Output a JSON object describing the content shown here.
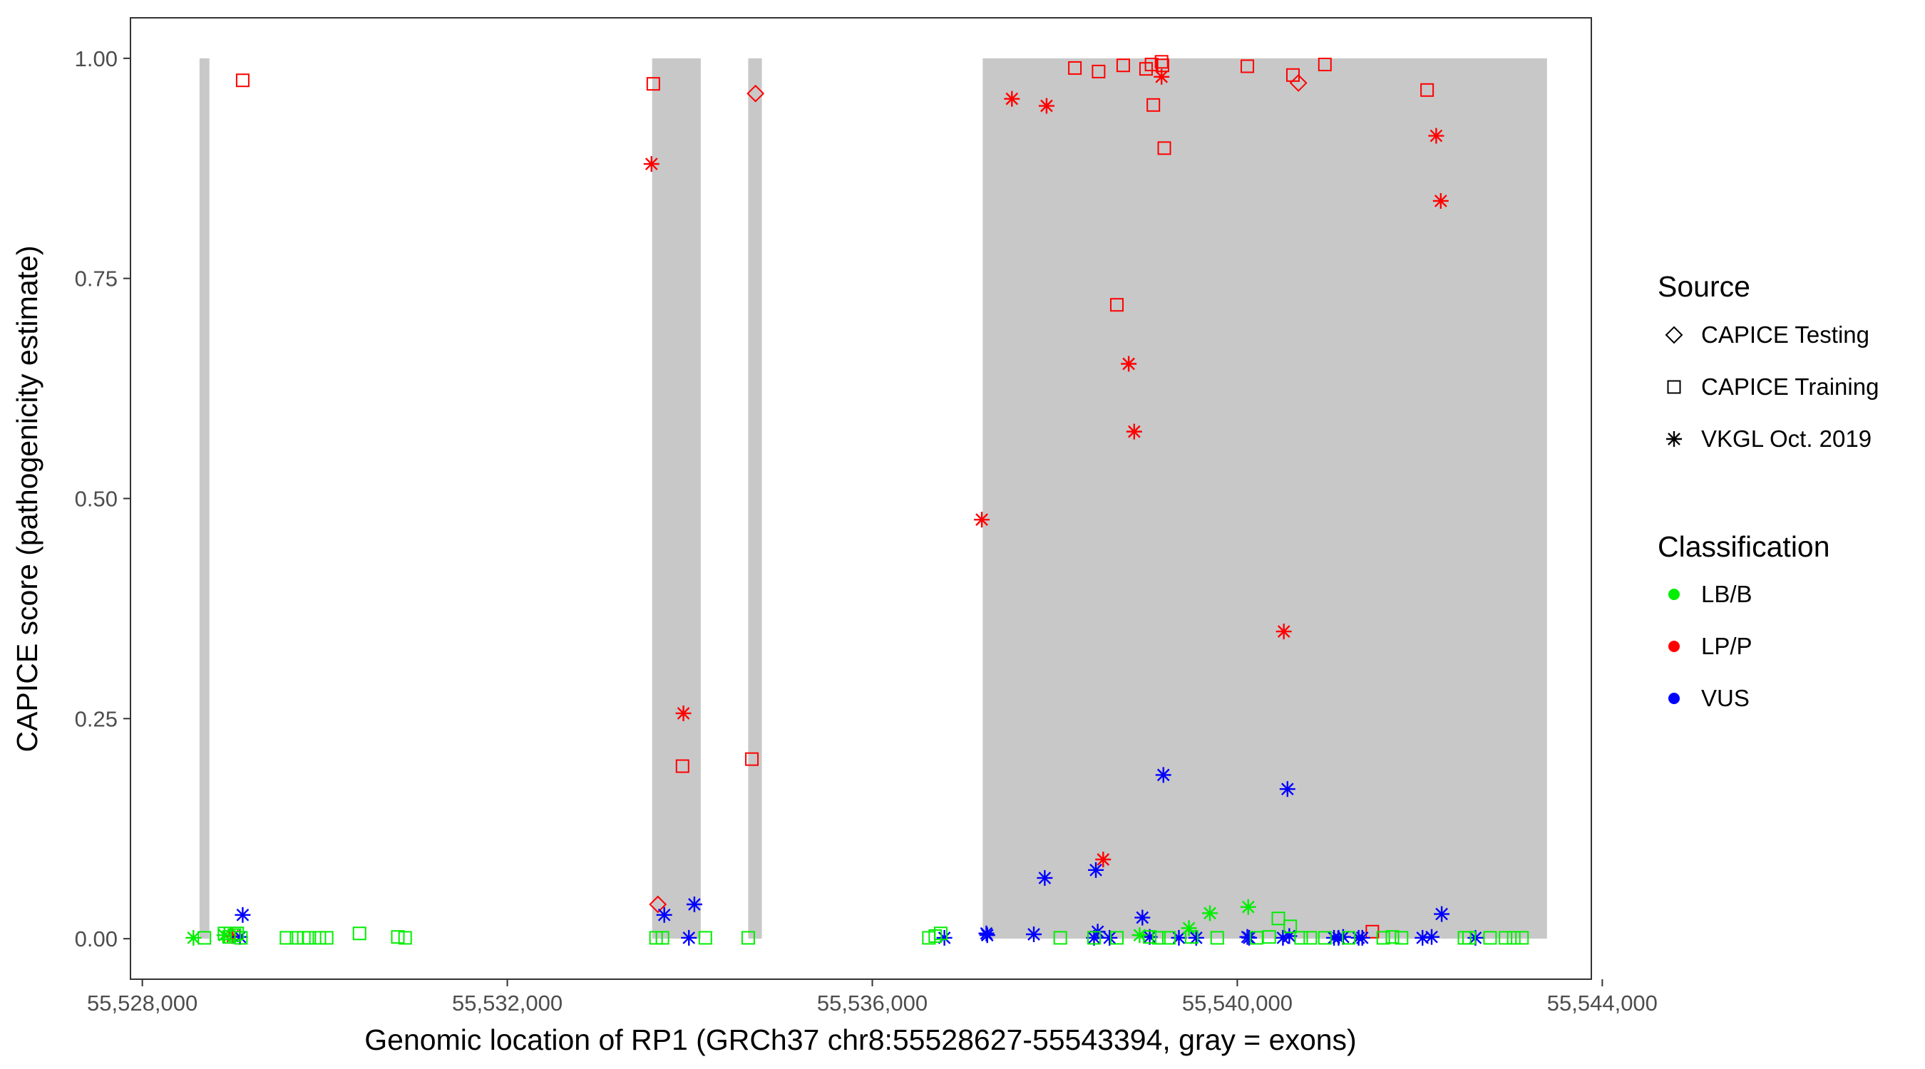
{
  "chart_data": {
    "type": "scatter",
    "title": "",
    "xlabel": "Genomic location of RP1 (GRCh37 chr8:55528627-55543394, gray = exons)",
    "ylabel": "CAPICE score (pathogenicity estimate)",
    "xlim": [
      55527870,
      55543880
    ],
    "ylim": [
      -0.046,
      1.046
    ],
    "x_ticks": [
      55528000,
      55532000,
      55536000,
      55540000,
      55544000
    ],
    "x_tick_labels": [
      "55,528,000",
      "55,532,000",
      "55,536,000",
      "55,540,000",
      "55,544,000"
    ],
    "y_ticks": [
      0,
      0.25,
      0.5,
      0.75,
      1
    ],
    "y_tick_labels": [
      "0.00",
      "0.25",
      "0.50",
      "0.75",
      "1.00"
    ],
    "grid": false,
    "legend_position": "right",
    "exons": [
      [
        55528627,
        55528735
      ],
      [
        55533587,
        55534120
      ],
      [
        55534640,
        55534790
      ],
      [
        55537210,
        55543394
      ]
    ],
    "legend": {
      "source": {
        "title": "Source",
        "items": [
          {
            "label": "CAPICE Testing",
            "shape": "diamond"
          },
          {
            "label": "CAPICE Training",
            "shape": "square"
          },
          {
            "label": "VKGL Oct. 2019",
            "shape": "asterisk"
          }
        ]
      },
      "classification": {
        "title": "Classification",
        "items": [
          {
            "label": "LB/B",
            "color": "#00ee00"
          },
          {
            "label": "LP/P",
            "color": "#ff0000"
          },
          {
            "label": "VUS",
            "color": "#0000ff"
          }
        ]
      }
    },
    "series": [
      {
        "source": "CAPICE Training",
        "classification": "LP/P",
        "shape": "square",
        "color": "#ff0000",
        "x": [
          55529100,
          55533600,
          55533920,
          55534680,
          55538220,
          55538480,
          55538750,
          55538680,
          55539000,
          55539060,
          55539080,
          55539170,
          55539180,
          55539200,
          55540110,
          55540610,
          55540960,
          55541480,
          55542080
        ],
        "y": [
          0.975,
          0.971,
          0.196,
          0.204,
          0.989,
          0.985,
          0.992,
          0.72,
          0.988,
          0.993,
          0.947,
          0.996,
          0.992,
          0.898,
          0.991,
          0.981,
          0.993,
          0.008,
          0.964
        ]
      },
      {
        "source": "CAPICE Testing",
        "classification": "LP/P",
        "shape": "diamond",
        "color": "#ff0000",
        "x": [
          55533650,
          55534720,
          55540670
        ],
        "y": [
          0.039,
          0.96,
          0.972
        ]
      },
      {
        "source": "VKGL Oct. 2019",
        "classification": "LP/P",
        "shape": "asterisk",
        "color": "#ff0000",
        "x": [
          55528990,
          55533580,
          55533930,
          55537200,
          55537530,
          55537910,
          55538530,
          55538810,
          55538870,
          55539170,
          55540510,
          55542180,
          55542230
        ],
        "y": [
          0.003,
          0.88,
          0.256,
          0.476,
          0.954,
          0.946,
          0.09,
          0.653,
          0.576,
          0.979,
          0.349,
          0.912,
          0.838
        ]
      },
      {
        "source": "VKGL Oct. 2019",
        "classification": "VUS",
        "shape": "asterisk",
        "color": "#0000ff",
        "x": [
          55529070,
          55529100,
          55533720,
          55533990,
          55534050,
          55536790,
          55537250,
          55537260,
          55537770,
          55537890,
          55538430,
          55538470,
          55538450,
          55538600,
          55538960,
          55539040,
          55539190,
          55539360,
          55539550,
          55540110,
          55540130,
          55540500,
          55540570,
          55540550,
          55541060,
          55541110,
          55541160,
          55541330,
          55541370,
          55542030,
          55542130,
          55542240,
          55542610
        ],
        "y": [
          0.002,
          0.027,
          0.027,
          0.001,
          0.039,
          0.001,
          0.006,
          0.004,
          0.005,
          0.069,
          0.001,
          0.008,
          0.078,
          0.001,
          0.024,
          0.002,
          0.186,
          0.001,
          0.001,
          0.002,
          0.001,
          0.001,
          0.003,
          0.17,
          0.001,
          0.001,
          0.002,
          0.001,
          0.001,
          0.001,
          0.002,
          0.028,
          0.001
        ]
      },
      {
        "source": "VKGL Oct. 2019",
        "classification": "LB/B",
        "shape": "asterisk",
        "color": "#00ee00",
        "x": [
          55528560,
          55528900,
          55538930,
          55539470,
          55539700,
          55540120
        ],
        "y": [
          0.001,
          0.004,
          0.004,
          0.012,
          0.029,
          0.036
        ]
      },
      {
        "source": "CAPICE Training",
        "classification": "LB/B",
        "shape": "square",
        "color": "#00ee00",
        "x": [
          55528680,
          55528900,
          55528950,
          55529010,
          55529040,
          55529080,
          55529580,
          55529690,
          55529770,
          55529830,
          55529940,
          55530020,
          55530380,
          55530800,
          55530880,
          55533630,
          55533700,
          55534170,
          55534640,
          55536620,
          55536690,
          55536750,
          55538060,
          55538430,
          55538680,
          55539040,
          55539140,
          55539250,
          55539500,
          55539780,
          55540210,
          55540350,
          55540450,
          55540580,
          55540700,
          55540800,
          55540960,
          55541220,
          55541600,
          55541700,
          55541800,
          55542490,
          55542540,
          55542770,
          55542940,
          55543030,
          55543120
        ],
        "y": [
          0.001,
          0.006,
          0.002,
          0.004,
          0.006,
          0.001,
          0.001,
          0.001,
          0.001,
          0.001,
          0.001,
          0.001,
          0.006,
          0.002,
          0.001,
          0.001,
          0.001,
          0.001,
          0.001,
          0.001,
          0.003,
          0.006,
          0.001,
          0.001,
          0.001,
          0.002,
          0.001,
          0.001,
          0.002,
          0.001,
          0.001,
          0.002,
          0.023,
          0.014,
          0.001,
          0.001,
          0.001,
          0.001,
          0.001,
          0.002,
          0.001,
          0.001,
          0.001,
          0.001,
          0.001,
          0.001,
          0.001
        ]
      }
    ]
  }
}
